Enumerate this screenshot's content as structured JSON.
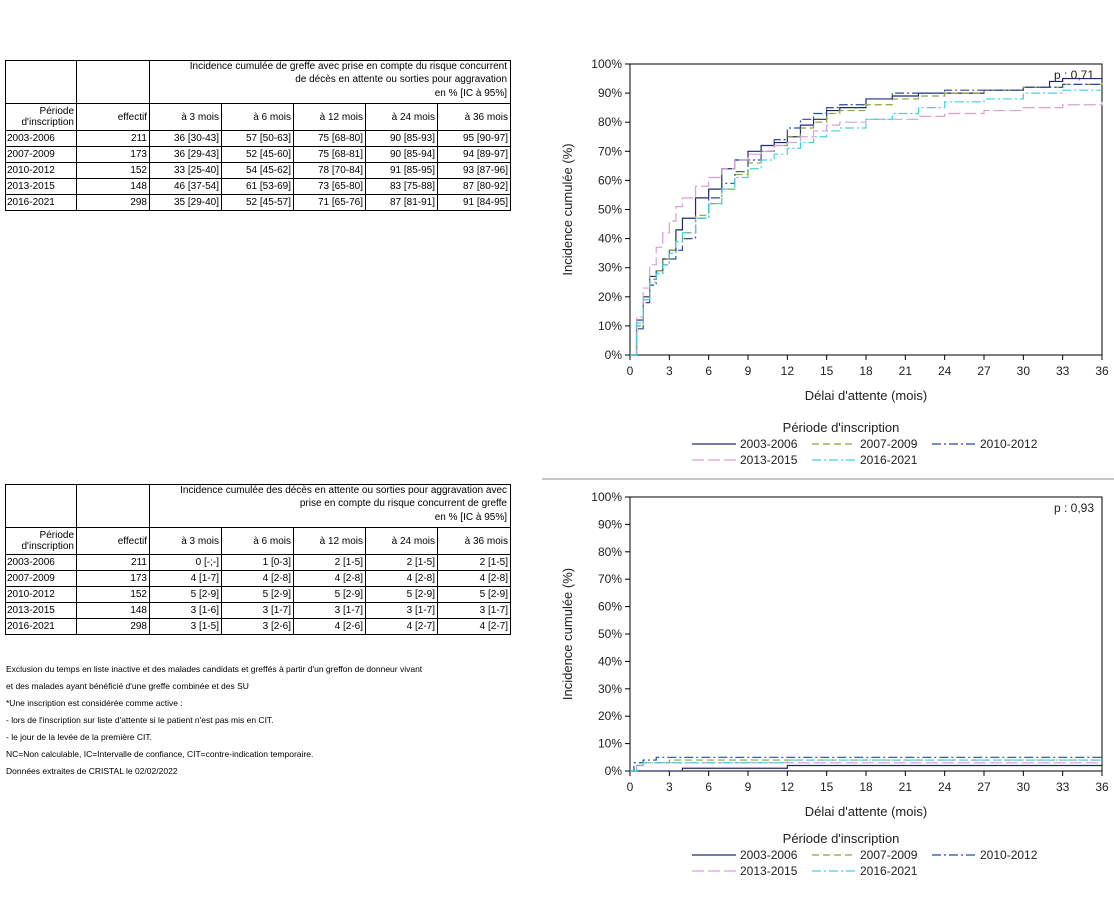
{
  "table1": {
    "title_lines": [
      "Incidence cumulée de greffe avec prise en compte du risque concurrent",
      "de décès en attente ou sorties pour aggravation",
      "en % [IC à 95%]"
    ],
    "period_header_lines": [
      "Période",
      "d'inscription"
    ],
    "columns": [
      "effectif",
      "à 3 mois",
      "à 6 mois",
      "à 12 mois",
      "à 24 mois",
      "à 36 mois"
    ],
    "rows": [
      [
        "2003-2006",
        "211",
        "36 [30-43]",
        "57 [50-63]",
        "75 [68-80]",
        "90 [85-93]",
        "95 [90-97]"
      ],
      [
        "2007-2009",
        "173",
        "36 [29-43]",
        "52 [45-60]",
        "75 [68-81]",
        "90 [85-94]",
        "94 [89-97]"
      ],
      [
        "2010-2012",
        "152",
        "33 [25-40]",
        "54 [45-62]",
        "78 [70-84]",
        "91 [85-95]",
        "93 [87-96]"
      ],
      [
        "2013-2015",
        "148",
        "46 [37-54]",
        "61 [53-69]",
        "73 [65-80]",
        "83 [75-88]",
        "87 [80-92]"
      ],
      [
        "2016-2021",
        "298",
        "35 [29-40]",
        "52 [45-57]",
        "71 [65-76]",
        "87 [81-91]",
        "91 [84-95]"
      ]
    ]
  },
  "table2": {
    "title_lines": [
      "Incidence cumulée des décès en attente ou sorties pour aggravation avec",
      "prise en compte du risque concurrent de greffe",
      "en % [IC à 95%]"
    ],
    "period_header_lines": [
      "Période",
      "d'inscription"
    ],
    "columns": [
      "effectif",
      "à 3 mois",
      "à 6 mois",
      "à 12 mois",
      "à 24 mois",
      "à 36 mois"
    ],
    "rows": [
      [
        "2003-2006",
        "211",
        "0 [-;-]",
        "1 [0-3]",
        "2 [1-5]",
        "2 [1-5]",
        "2 [1-5]"
      ],
      [
        "2007-2009",
        "173",
        "4 [1-7]",
        "4 [2-8]",
        "4 [2-8]",
        "4 [2-8]",
        "4 [2-8]"
      ],
      [
        "2010-2012",
        "152",
        "5 [2-9]",
        "5 [2-9]",
        "5 [2-9]",
        "5 [2-9]",
        "5 [2-9]"
      ],
      [
        "2013-2015",
        "148",
        "3 [1-6]",
        "3 [1-7]",
        "3 [1-7]",
        "3 [1-7]",
        "3 [1-7]"
      ],
      [
        "2016-2021",
        "298",
        "3 [1-5]",
        "3 [2-6]",
        "4 [2-6]",
        "4 [2-7]",
        "4 [2-7]"
      ]
    ]
  },
  "notes": [
    "Exclusion du temps en liste inactive et des malades candidats et greffés à partir d'un greffon de donneur vivant",
    "et des malades ayant bénéficié d'une greffe combinée et des SU",
    "*Une inscription est considérée comme active :",
    "- lors de l'inscription sur liste d'attente si le patient n'est pas mis en CIT.",
    "- le jour de la levée de la première CIT.",
    "NC=Non calculable, IC=Intervalle de confiance, CIT=contre-indication temporaire.",
    "Données extraites de CRISTAL le 02/02/2022"
  ],
  "chart_data": [
    {
      "type": "line",
      "step": true,
      "xlabel": "Délai d'attente (mois)",
      "ylabel": "Incidence cumulée (%)",
      "xlim": [
        0,
        36
      ],
      "ylim": [
        0,
        100
      ],
      "xticks": [
        "0",
        "3",
        "6",
        "9",
        "12",
        "15",
        "18",
        "21",
        "24",
        "27",
        "30",
        "33",
        "36"
      ],
      "yticks": [
        "0%",
        "10%",
        "20%",
        "30%",
        "40%",
        "50%",
        "60%",
        "70%",
        "80%",
        "90%",
        "100%"
      ],
      "annotation": "p : 0,71",
      "legend_title": "Période d'inscription",
      "legend_position": "bottom",
      "series": [
        {
          "name": "2003-2006",
          "color": "#1f2a6b",
          "dash": "",
          "x": [
            0,
            0.5,
            1,
            1.5,
            2,
            2.5,
            3,
            3.5,
            4,
            5,
            6,
            7,
            8,
            9,
            10,
            11,
            12,
            13,
            14,
            15,
            16,
            18,
            20,
            22,
            24,
            27,
            30,
            32,
            33,
            36
          ],
          "y": [
            0,
            12,
            20,
            27,
            29,
            33,
            36,
            43,
            47,
            54,
            57,
            64,
            67,
            70,
            72,
            73,
            75,
            79,
            81,
            84,
            85,
            88,
            89,
            90,
            90,
            91,
            92,
            94,
            95,
            95
          ]
        },
        {
          "name": "2007-2009",
          "color": "#8aa23c",
          "dash": "7,4",
          "x": [
            0,
            0.5,
            1,
            1.5,
            2,
            2.5,
            3,
            3.5,
            4,
            5,
            6,
            7,
            8,
            9,
            10,
            11,
            12,
            13,
            14,
            15,
            16,
            18,
            20,
            22,
            24,
            27,
            30,
            33,
            36
          ],
          "y": [
            0,
            10,
            19,
            26,
            29,
            33,
            36,
            39,
            42,
            48,
            52,
            57,
            62,
            66,
            70,
            72,
            75,
            78,
            80,
            83,
            84,
            86,
            88,
            89,
            90,
            91,
            92,
            93,
            94
          ]
        },
        {
          "name": "2010-2012",
          "color": "#2a4c9c",
          "dash": "9,3,2,3",
          "x": [
            0,
            0.5,
            1,
            1.5,
            2,
            2.5,
            3,
            3.5,
            4,
            5,
            6,
            7,
            8,
            9,
            10,
            11,
            12,
            13,
            14,
            15,
            16,
            18,
            20,
            22,
            24,
            27,
            30,
            33,
            36
          ],
          "y": [
            0,
            9,
            18,
            24,
            28,
            31,
            33,
            36,
            40,
            47,
            54,
            59,
            63,
            67,
            70,
            74,
            78,
            81,
            83,
            85,
            86,
            88,
            90,
            90,
            91,
            91,
            92,
            93,
            93
          ]
        },
        {
          "name": "2013-2015",
          "color": "#d9a0d6",
          "dash": "12,4",
          "x": [
            0,
            0.5,
            1,
            1.5,
            2,
            2.5,
            3,
            3.5,
            4,
            5,
            6,
            7,
            8,
            9,
            10,
            11,
            12,
            13,
            14,
            15,
            16,
            18,
            20,
            22,
            24,
            27,
            30,
            33,
            36
          ],
          "y": [
            0,
            13,
            23,
            31,
            37,
            42,
            46,
            51,
            54,
            58,
            61,
            64,
            67,
            69,
            70,
            72,
            73,
            75,
            77,
            79,
            80,
            81,
            81,
            82,
            83,
            84,
            85,
            86,
            87
          ]
        },
        {
          "name": "2016-2021",
          "color": "#3fd4e0",
          "dash": "9,3,2,3",
          "x": [
            0,
            0.5,
            1,
            1.5,
            2,
            2.5,
            3,
            3.5,
            4,
            5,
            6,
            7,
            8,
            9,
            10,
            11,
            12,
            13,
            14,
            15,
            16,
            18,
            20,
            22,
            24,
            27,
            30,
            33,
            36
          ],
          "y": [
            0,
            11,
            19,
            25,
            28,
            31,
            35,
            39,
            42,
            47,
            52,
            57,
            61,
            64,
            67,
            69,
            71,
            73,
            75,
            77,
            78,
            81,
            83,
            85,
            87,
            88,
            90,
            91,
            91
          ]
        }
      ]
    },
    {
      "type": "line",
      "step": true,
      "xlabel": "Délai d'attente (mois)",
      "ylabel": "Incidence cumulée (%)",
      "xlim": [
        0,
        36
      ],
      "ylim": [
        0,
        100
      ],
      "xticks": [
        "0",
        "3",
        "6",
        "9",
        "12",
        "15",
        "18",
        "21",
        "24",
        "27",
        "30",
        "33",
        "36"
      ],
      "yticks": [
        "0%",
        "10%",
        "20%",
        "30%",
        "40%",
        "50%",
        "60%",
        "70%",
        "80%",
        "90%",
        "100%"
      ],
      "annotation": "p : 0,93",
      "legend_title": "Période d'inscription",
      "legend_position": "bottom",
      "series": [
        {
          "name": "2003-2006",
          "color": "#1f2a6b",
          "dash": "",
          "x": [
            0,
            3.5,
            4,
            9,
            12,
            36
          ],
          "y": [
            0,
            0,
            1,
            1,
            2,
            2
          ]
        },
        {
          "name": "2007-2009",
          "color": "#8aa23c",
          "dash": "7,4",
          "x": [
            0,
            0.5,
            1,
            2,
            3,
            36
          ],
          "y": [
            0,
            2,
            3,
            3,
            4,
            4
          ]
        },
        {
          "name": "2010-2012",
          "color": "#2a4c9c",
          "dash": "9,3,2,3",
          "x": [
            0,
            0.3,
            1,
            2,
            36
          ],
          "y": [
            0,
            3,
            4,
            5,
            5
          ]
        },
        {
          "name": "2013-2015",
          "color": "#d9a0d6",
          "dash": "12,4",
          "x": [
            0,
            0.5,
            1,
            3,
            6,
            36
          ],
          "y": [
            0,
            2,
            3,
            3,
            3,
            3
          ]
        },
        {
          "name": "2016-2021",
          "color": "#3fd4e0",
          "dash": "9,3,2,3",
          "x": [
            0,
            0.5,
            1,
            3,
            6,
            12,
            36
          ],
          "y": [
            0,
            2,
            3,
            3,
            3,
            4,
            4
          ]
        }
      ]
    }
  ]
}
